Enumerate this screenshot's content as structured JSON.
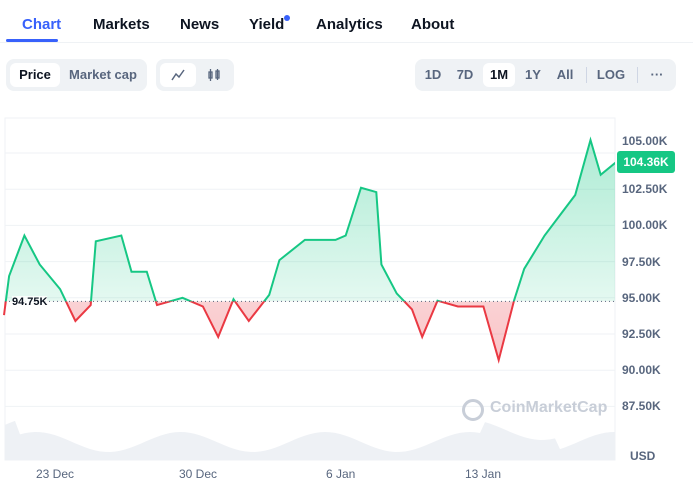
{
  "tabs": [
    {
      "label": "Chart",
      "active": true
    },
    {
      "label": "Markets"
    },
    {
      "label": "News"
    },
    {
      "label": "Yield",
      "has_dot": true
    },
    {
      "label": "Analytics"
    },
    {
      "label": "About"
    }
  ],
  "toolbar": {
    "metric": [
      "Price",
      "Market cap"
    ],
    "metric_selected": "Price",
    "chart_types": [
      "line-chart-icon",
      "candlestick-icon"
    ],
    "ranges": [
      "1D",
      "7D",
      "1M",
      "1Y",
      "All"
    ],
    "range_selected": "1M",
    "log": "LOG",
    "more": "···"
  },
  "colors": {
    "accent": "#3861fb",
    "up": "#16c784",
    "down": "#ea3943"
  },
  "chart_data": {
    "type": "line",
    "y_ticks": [
      "105.00K",
      "102.50K",
      "100.00K",
      "97.50K",
      "95.00K",
      "92.50K",
      "90.00K",
      "87.50K"
    ],
    "x_ticks": [
      "23 Dec",
      "30 Dec",
      "6 Jan",
      "13 Jan"
    ],
    "ylim": [
      85000,
      107500
    ],
    "baseline": 94750,
    "baseline_label": "94.75K",
    "current_label": "104.36K",
    "unit": "USD",
    "watermark": "CoinMarketCap",
    "points": [
      [
        "2024-12-20T12:00",
        93800
      ],
      [
        "2024-12-20T18:00",
        96500
      ],
      [
        "2024-12-21T12:00",
        99300
      ],
      [
        "2024-12-22T06:00",
        97300
      ],
      [
        "2024-12-23T06:00",
        95600
      ],
      [
        "2024-12-24T00:00",
        93400
      ],
      [
        "2024-12-24T18:00",
        94500
      ],
      [
        "2024-12-25T00:00",
        98900
      ],
      [
        "2024-12-26T06:00",
        99300
      ],
      [
        "2024-12-26T18:00",
        96800
      ],
      [
        "2024-12-27T12:00",
        96800
      ],
      [
        "2024-12-28T00:00",
        94500
      ],
      [
        "2024-12-29T06:00",
        95000
      ],
      [
        "2024-12-30T06:00",
        94400
      ],
      [
        "2024-12-31T00:00",
        92300
      ],
      [
        "2024-12-31T18:00",
        94900
      ],
      [
        "2025-01-01T12:00",
        93400
      ],
      [
        "2025-01-02T12:00",
        95200
      ],
      [
        "2025-01-03T00:00",
        97600
      ],
      [
        "2025-01-04T06:00",
        99000
      ],
      [
        "2025-01-05T18:00",
        99000
      ],
      [
        "2025-01-06T06:00",
        99300
      ],
      [
        "2025-01-07T00:00",
        102600
      ],
      [
        "2025-01-07T18:00",
        102300
      ],
      [
        "2025-01-08T00:00",
        97300
      ],
      [
        "2025-01-08T18:00",
        95300
      ],
      [
        "2025-01-09T12:00",
        94200
      ],
      [
        "2025-01-10T00:00",
        92300
      ],
      [
        "2025-01-10T18:00",
        94800
      ],
      [
        "2025-01-11T18:00",
        94400
      ],
      [
        "2025-01-13T00:00",
        94400
      ],
      [
        "2025-01-13T18:00",
        90700
      ],
      [
        "2025-01-14T12:00",
        94800
      ],
      [
        "2025-01-15T00:00",
        97000
      ],
      [
        "2025-01-16T00:00",
        99300
      ],
      [
        "2025-01-16T18:00",
        100700
      ],
      [
        "2025-01-17T12:00",
        102100
      ],
      [
        "2025-01-18T06:00",
        105900
      ],
      [
        "2025-01-18T18:00",
        103500
      ],
      [
        "2025-01-19T12:00",
        104360
      ]
    ]
  }
}
